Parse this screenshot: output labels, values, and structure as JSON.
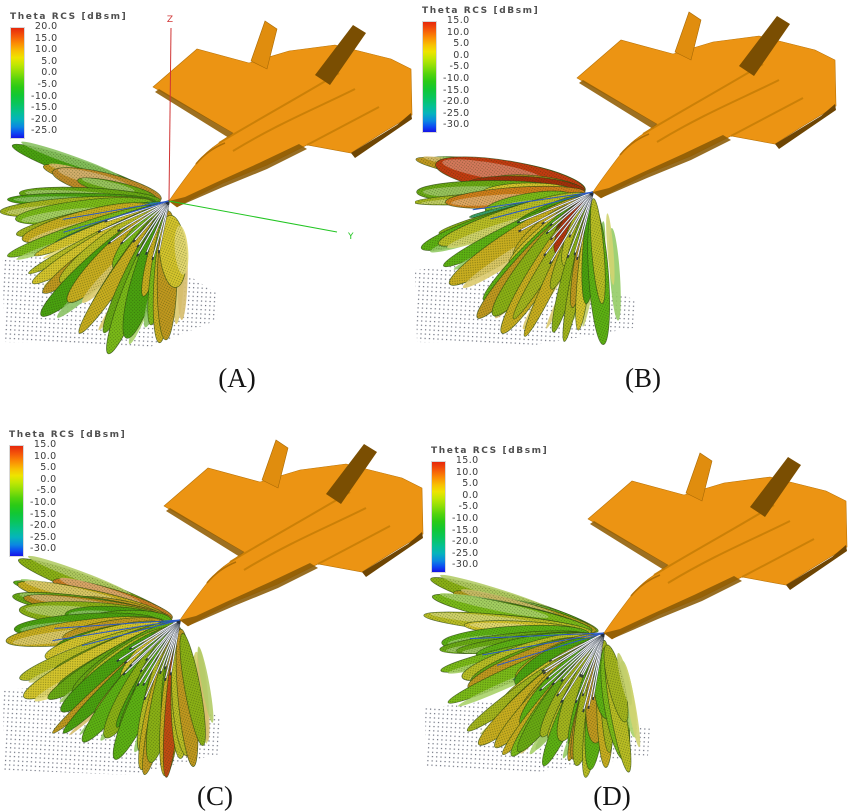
{
  "panels": [
    {
      "id": "A",
      "caption": "(A)",
      "colorbar_title": "Theta RCS [dBsm]",
      "ticks": [
        "20.0",
        "15.0",
        "10.0",
        "5.0",
        "0.0",
        "-5.0",
        "-10.0",
        "-15.0",
        "-20.0",
        "-25.0"
      ],
      "axis_labels": {
        "z": "Z",
        "y": "Y"
      }
    },
    {
      "id": "B",
      "caption": "(B)",
      "colorbar_title": "Theta RCS [dBsm]",
      "ticks": [
        "15.0",
        "10.0",
        "5.0",
        "0.0",
        "-5.0",
        "-10.0",
        "-15.0",
        "-20.0",
        "-25.0",
        "-30.0"
      ]
    },
    {
      "id": "C",
      "caption": "(C)",
      "colorbar_title": "Theta RCS [dBsm]",
      "ticks": [
        "15.0",
        "10.0",
        "5.0",
        "0.0",
        "-5.0",
        "-10.0",
        "-15.0",
        "-20.0",
        "-25.0",
        "-30.0"
      ]
    },
    {
      "id": "D",
      "caption": "(D)",
      "colorbar_title": "Theta RCS [dBsm]",
      "ticks": [
        "15.0",
        "10.0",
        "5.0",
        "0.0",
        "-5.0",
        "-10.0",
        "-15.0",
        "-20.0",
        "-25.0",
        "-30.0"
      ]
    }
  ],
  "colors": {
    "background": "#ffffff",
    "aircraft_orange": "#EC9413",
    "aircraft_orange_dark": "#C67D06",
    "aircraft_shadow_brown": "#8A5A04",
    "aircraft_tail_slab": "#7A4E02",
    "axis_z_red": "#D03434",
    "axis_y_green": "#22C522",
    "colorbar_top_red": "#E6280C",
    "colorbar_bottom_blue": "#1513E6",
    "ray_dark": "#26303E",
    "ray_white": "#F4F6FA",
    "ray_blue": "#2B59C8",
    "stipple_dot": "#44485A",
    "lobe_edge": "#2C4A12",
    "lobe_palette": [
      "#B9BD24",
      "#C8AD1F",
      "#A3B41D",
      "#8AB015",
      "#68A913",
      "#49A10F",
      "#D4C42C",
      "#C0981F",
      "#5CB113",
      "#7ABA18"
    ],
    "lobe_palette_cool": [
      "#2D9A84",
      "#1F86A0",
      "#37A06C"
    ]
  },
  "chart_data": {
    "type": "heatmap",
    "title": "Theta RCS [dBsm]",
    "legend_position": "top-left of each panel",
    "panels": [
      {
        "label": "(A)",
        "colorbar_ticks_dBsm": [
          20,
          15,
          10,
          5,
          0,
          -5,
          -10,
          -15,
          -20,
          -25
        ],
        "scale_range_dBsm": [
          -25,
          20
        ],
        "visible_axes": [
          "Z",
          "Y"
        ]
      },
      {
        "label": "(B)",
        "colorbar_ticks_dBsm": [
          15,
          10,
          5,
          0,
          -5,
          -10,
          -15,
          -20,
          -25,
          -30
        ],
        "scale_range_dBsm": [
          -30,
          15
        ],
        "visible_axes": []
      },
      {
        "label": "(C)",
        "colorbar_ticks_dBsm": [
          15,
          10,
          5,
          0,
          -5,
          -10,
          -15,
          -20,
          -25,
          -30
        ],
        "scale_range_dBsm": [
          -30,
          15
        ],
        "visible_axes": []
      },
      {
        "label": "(D)",
        "colorbar_ticks_dBsm": [
          15,
          10,
          5,
          0,
          -5,
          -10,
          -15,
          -20,
          -25,
          -30
        ],
        "scale_range_dBsm": [
          -30,
          15
        ],
        "visible_axes": []
      }
    ],
    "notes": "Four 3D views of simulated theta-polarized RCS lobe patterns (color-mapped wireframe lobes) radiating from the nose region of a fighter aircraft model; colors map dBsm values per the colorbar."
  }
}
